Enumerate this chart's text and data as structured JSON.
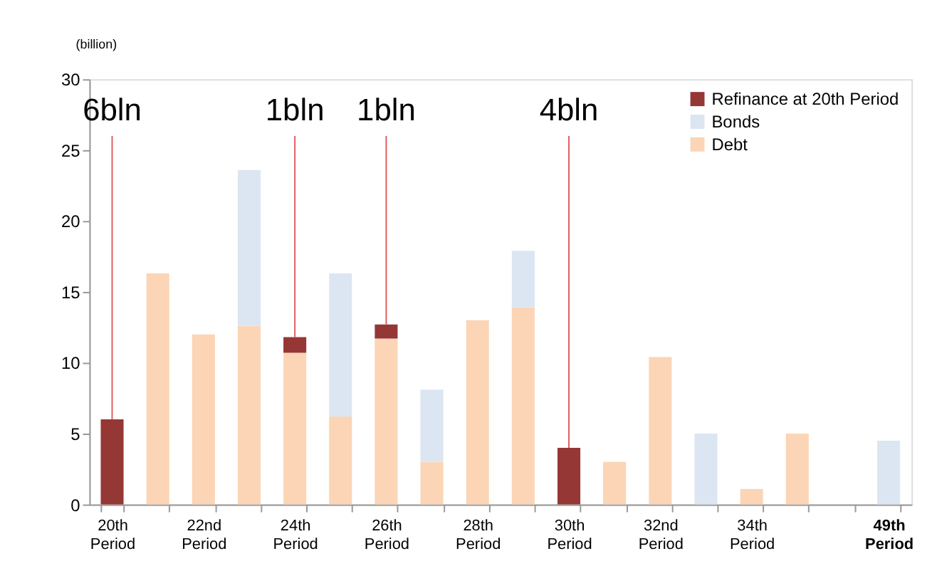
{
  "chart_data": {
    "type": "bar",
    "stacked": true,
    "ylabel": "(billion)",
    "categories": [
      "20th Period",
      null,
      "22nd Period",
      null,
      "24th Period",
      null,
      "26th Period",
      null,
      "28th Period",
      null,
      "30th Period",
      null,
      "32nd Period",
      null,
      "34th Period",
      null,
      null,
      "49th Period"
    ],
    "series": [
      {
        "name": "Debt",
        "color": "#fbd5b5",
        "values": [
          null,
          16.3,
          12.0,
          12.6,
          10.7,
          6.2,
          11.7,
          3.0,
          13.0,
          13.9,
          null,
          3.0,
          10.4,
          null,
          1.1,
          5.0,
          null,
          null
        ]
      },
      {
        "name": "Bonds",
        "color": "#dce6f2",
        "values": [
          null,
          null,
          null,
          11.0,
          null,
          10.1,
          null,
          5.1,
          null,
          4.0,
          null,
          null,
          null,
          5.0,
          null,
          null,
          null,
          4.5
        ]
      },
      {
        "name": "Refinance at 20th Period",
        "color": "#953735",
        "values": [
          6.0,
          null,
          null,
          null,
          1.1,
          null,
          1.0,
          null,
          null,
          null,
          4.0,
          null,
          null,
          null,
          null,
          null,
          null,
          null
        ]
      }
    ],
    "ylim": [
      0,
      30
    ],
    "yticks": [
      0,
      5,
      10,
      15,
      20,
      25,
      30
    ],
    "grid": false,
    "legend": "top right",
    "annotations": [
      {
        "text": "6bln",
        "x": "20th Period",
        "y": 6.0
      },
      {
        "text": "1bln",
        "x": "24th Period",
        "y": 11.8
      },
      {
        "text": "1bln",
        "x": "26th Period",
        "y": 12.7
      },
      {
        "text": "4bln",
        "x": "30th Period",
        "y": 4.0
      }
    ]
  }
}
